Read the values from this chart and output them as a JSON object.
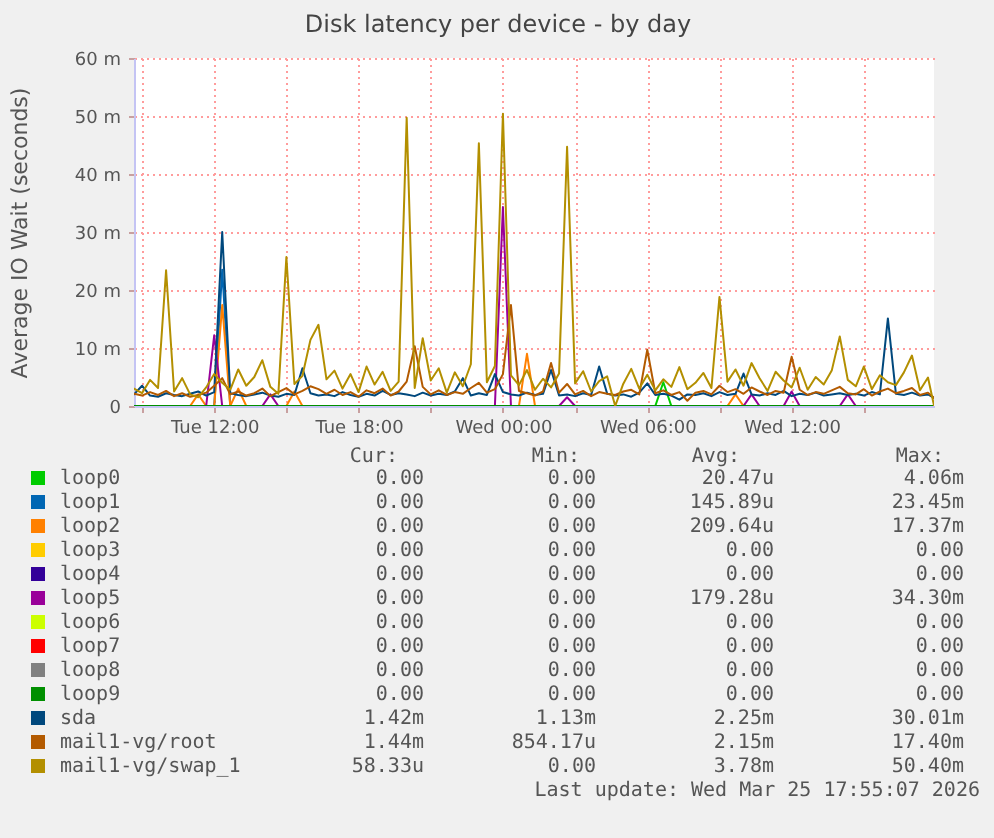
{
  "chart_data": {
    "type": "line",
    "title": "Disk latency per device - by day",
    "ylabel": "Average IO Wait (seconds)",
    "x": [
      "2026-03-24T08:40",
      "2026-03-24T09:00",
      "2026-03-24T09:20",
      "2026-03-24T09:40",
      "2026-03-24T10:00",
      "2026-03-24T10:20",
      "2026-03-24T10:40",
      "2026-03-24T11:00",
      "2026-03-24T11:20",
      "2026-03-24T11:40",
      "2026-03-24T12:00",
      "2026-03-24T12:20",
      "2026-03-24T12:40",
      "2026-03-24T13:00",
      "2026-03-24T13:20",
      "2026-03-24T13:40",
      "2026-03-24T14:00",
      "2026-03-24T14:20",
      "2026-03-24T14:40",
      "2026-03-24T15:00",
      "2026-03-24T15:20",
      "2026-03-24T15:40",
      "2026-03-24T16:00",
      "2026-03-24T16:20",
      "2026-03-24T16:40",
      "2026-03-24T17:00",
      "2026-03-24T17:20",
      "2026-03-24T17:40",
      "2026-03-24T18:00",
      "2026-03-24T18:20",
      "2026-03-24T18:40",
      "2026-03-24T19:00",
      "2026-03-24T19:20",
      "2026-03-24T19:40",
      "2026-03-24T20:00",
      "2026-03-24T20:20",
      "2026-03-24T20:40",
      "2026-03-24T21:00",
      "2026-03-24T21:20",
      "2026-03-24T21:40",
      "2026-03-24T22:00",
      "2026-03-24T22:20",
      "2026-03-24T22:40",
      "2026-03-24T23:00",
      "2026-03-24T23:20",
      "2026-03-24T23:40",
      "2026-03-25T00:00",
      "2026-03-25T00:20",
      "2026-03-25T00:40",
      "2026-03-25T01:00",
      "2026-03-25T01:20",
      "2026-03-25T01:40",
      "2026-03-25T02:00",
      "2026-03-25T02:20",
      "2026-03-25T02:40",
      "2026-03-25T03:00",
      "2026-03-25T03:20",
      "2026-03-25T03:40",
      "2026-03-25T04:00",
      "2026-03-25T04:20",
      "2026-03-25T04:40",
      "2026-03-25T05:00",
      "2026-03-25T05:20",
      "2026-03-25T05:40",
      "2026-03-25T06:00",
      "2026-03-25T06:20",
      "2026-03-25T06:40",
      "2026-03-25T07:00",
      "2026-03-25T07:20",
      "2026-03-25T07:40",
      "2026-03-25T08:00",
      "2026-03-25T08:20",
      "2026-03-25T08:40",
      "2026-03-25T09:00",
      "2026-03-25T09:20",
      "2026-03-25T09:40",
      "2026-03-25T10:00",
      "2026-03-25T10:20",
      "2026-03-25T10:40",
      "2026-03-25T11:00",
      "2026-03-25T11:20",
      "2026-03-25T11:40",
      "2026-03-25T12:00",
      "2026-03-25T12:20",
      "2026-03-25T12:40",
      "2026-03-25T13:00",
      "2026-03-25T13:20",
      "2026-03-25T13:40",
      "2026-03-25T14:00",
      "2026-03-25T14:20",
      "2026-03-25T14:40",
      "2026-03-25T15:00",
      "2026-03-25T15:20",
      "2026-03-25T15:40",
      "2026-03-25T16:00",
      "2026-03-25T16:20",
      "2026-03-25T16:40",
      "2026-03-25T17:00",
      "2026-03-25T17:20",
      "2026-03-25T17:40",
      "2026-03-25T17:55"
    ],
    "series": [
      {
        "name": "loop0",
        "color": "#00cc00",
        "x": [
          "2026-03-25T06:20",
          "2026-03-25T06:40",
          "2026-03-25T07:00"
        ],
        "values": [
          0,
          4.1,
          0
        ]
      },
      {
        "name": "loop1",
        "color": "#0066b3",
        "x": [
          "2026-03-24T12:00",
          "2026-03-24T12:20",
          "2026-03-24T12:40"
        ],
        "values": [
          0,
          23.5,
          0
        ]
      },
      {
        "name": "loop2",
        "color": "#ff8000",
        "x": [
          "2026-03-24T11:00",
          "2026-03-24T11:20",
          "2026-03-24T11:40",
          "2026-03-24T12:00",
          "2026-03-24T12:20",
          "2026-03-24T12:40",
          "2026-03-24T13:00",
          "2026-03-24T13:20",
          "2026-03-24T15:00",
          "2026-03-24T15:20",
          "2026-03-24T15:40",
          "2026-03-25T00:40",
          "2026-03-25T01:00",
          "2026-03-25T01:20",
          "2026-03-25T09:20",
          "2026-03-25T09:40",
          "2026-03-25T10:00"
        ],
        "values": [
          0,
          2,
          0,
          0,
          17.4,
          0,
          3,
          0,
          0,
          2.5,
          0,
          0,
          9,
          0,
          0,
          2,
          0
        ]
      },
      {
        "name": "loop3",
        "color": "#ffcc00",
        "values": [
          null,
          null,
          null,
          null,
          null,
          null,
          null,
          null,
          null,
          null,
          null,
          null,
          null,
          null,
          null,
          null,
          null,
          null,
          null,
          null,
          null,
          null,
          null,
          null,
          null,
          null,
          null,
          null,
          null,
          null,
          null,
          null,
          null,
          null,
          null,
          null,
          null,
          null,
          null,
          null,
          null,
          null,
          null,
          null,
          null,
          null,
          null,
          null,
          null,
          null,
          null,
          null,
          null,
          null,
          null,
          null,
          null,
          null,
          null,
          null,
          null,
          null,
          null,
          null,
          null,
          null,
          null,
          null,
          null,
          null,
          null,
          null,
          null,
          null,
          null,
          null,
          null,
          null,
          null,
          null,
          null,
          null,
          null,
          null,
          null,
          null,
          null,
          null,
          null,
          null,
          null,
          null,
          null,
          null,
          null,
          null,
          null,
          null,
          null,
          null,
          null
        ]
      },
      {
        "name": "loop4",
        "color": "#330099",
        "values": [
          null,
          null,
          null,
          null,
          null,
          null,
          null,
          null,
          null,
          null,
          null,
          null,
          null,
          null,
          null,
          null,
          null,
          null,
          null,
          null,
          null,
          null,
          null,
          null,
          null,
          null,
          null,
          null,
          null,
          null,
          null,
          null,
          null,
          null,
          null,
          null,
          null,
          null,
          null,
          null,
          null,
          null,
          null,
          null,
          null,
          null,
          null,
          null,
          null,
          null,
          null,
          null,
          null,
          null,
          null,
          null,
          null,
          null,
          null,
          null,
          null,
          null,
          null,
          null,
          null,
          null,
          null,
          null,
          null,
          null,
          null,
          null,
          null,
          null,
          null,
          null,
          null,
          null,
          null,
          null,
          null,
          null,
          null,
          null,
          null,
          null,
          null,
          null,
          null,
          null,
          null,
          null,
          null,
          null,
          null,
          null,
          null,
          null,
          null,
          null,
          null
        ]
      },
      {
        "name": "loop5",
        "color": "#990099",
        "x": [
          "2026-03-24T11:40",
          "2026-03-24T12:00",
          "2026-03-24T12:20",
          "2026-03-24T14:00",
          "2026-03-24T14:20",
          "2026-03-24T14:40",
          "2026-03-24T23:40",
          "2026-03-25T00:00",
          "2026-03-25T00:20",
          "2026-03-25T02:20",
          "2026-03-25T02:40",
          "2026-03-25T03:00",
          "2026-03-25T10:00",
          "2026-03-25T10:20",
          "2026-03-25T10:40",
          "2026-03-25T11:40",
          "2026-03-25T12:00",
          "2026-03-25T12:20",
          "2026-03-25T14:00",
          "2026-03-25T14:20",
          "2026-03-25T14:40"
        ],
        "values": [
          0,
          12.2,
          0,
          0,
          2,
          0,
          0,
          34.3,
          0,
          0,
          1.5,
          0,
          0,
          2,
          0,
          0,
          2.5,
          0,
          0,
          2,
          0
        ]
      },
      {
        "name": "loop6",
        "color": "#ccff00",
        "values": [
          null,
          null,
          null,
          null,
          null,
          null,
          null,
          null,
          null,
          null,
          null,
          null,
          null,
          null,
          null,
          null,
          null,
          null,
          null,
          null,
          null,
          null,
          null,
          null,
          null,
          null,
          null,
          null,
          null,
          null,
          null,
          null,
          null,
          null,
          null,
          null,
          null,
          null,
          null,
          null,
          null,
          null,
          null,
          null,
          null,
          null,
          null,
          null,
          null,
          null,
          null,
          null,
          null,
          null,
          null,
          null,
          null,
          null,
          null,
          null,
          null,
          null,
          null,
          null,
          null,
          null,
          null,
          null,
          null,
          null,
          null,
          null,
          null,
          null,
          null,
          null,
          null,
          null,
          null,
          null,
          null,
          null,
          null,
          null,
          null,
          null,
          null,
          null,
          null,
          null,
          null,
          null,
          null,
          null,
          null,
          null,
          null,
          null,
          null,
          null,
          null
        ]
      },
      {
        "name": "loop7",
        "color": "#ff0000",
        "values": [
          null,
          null,
          null,
          null,
          null,
          null,
          null,
          null,
          null,
          null,
          null,
          null,
          null,
          null,
          null,
          null,
          null,
          null,
          null,
          null,
          null,
          null,
          null,
          null,
          null,
          null,
          null,
          null,
          null,
          null,
          null,
          null,
          null,
          null,
          null,
          null,
          null,
          null,
          null,
          null,
          null,
          null,
          null,
          null,
          null,
          null,
          null,
          null,
          null,
          null,
          null,
          null,
          null,
          null,
          null,
          null,
          null,
          null,
          null,
          null,
          null,
          null,
          null,
          null,
          null,
          null,
          null,
          null,
          null,
          null,
          null,
          null,
          null,
          null,
          null,
          null,
          null,
          null,
          null,
          null,
          null,
          null,
          null,
          null,
          null,
          null,
          null,
          null,
          null,
          null,
          null,
          null,
          null,
          null,
          null,
          null,
          null,
          null,
          null,
          null,
          null
        ]
      },
      {
        "name": "loop8",
        "color": "#808080",
        "values": [
          null,
          null,
          null,
          null,
          null,
          null,
          null,
          null,
          null,
          null,
          null,
          null,
          null,
          null,
          null,
          null,
          null,
          null,
          null,
          null,
          null,
          null,
          null,
          null,
          null,
          null,
          null,
          null,
          null,
          null,
          null,
          null,
          null,
          null,
          null,
          null,
          null,
          null,
          null,
          null,
          null,
          null,
          null,
          null,
          null,
          null,
          null,
          null,
          null,
          null,
          null,
          null,
          null,
          null,
          null,
          null,
          null,
          null,
          null,
          null,
          null,
          null,
          null,
          null,
          null,
          null,
          null,
          null,
          null,
          null,
          null,
          null,
          null,
          null,
          null,
          null,
          null,
          null,
          null,
          null,
          null,
          null,
          null,
          null,
          null,
          null,
          null,
          null,
          null,
          null,
          null,
          null,
          null,
          null,
          null,
          null,
          null,
          null,
          null,
          null,
          null
        ]
      },
      {
        "name": "loop9",
        "color": "#008f00",
        "x": [
          "2026-03-24T08:40",
          "2026-03-25T17:55"
        ],
        "values": [
          0,
          0
        ]
      },
      {
        "name": "sda",
        "color": "#00487d",
        "values": [
          2.0,
          3.5,
          1.8,
          1.6,
          2.2,
          1.9,
          1.7,
          2.1,
          2.5,
          1.8,
          2.4,
          30.0,
          2.2,
          1.9,
          1.7,
          2.0,
          2.3,
          1.8,
          1.6,
          2.1,
          1.9,
          6.5,
          2.2,
          1.8,
          2.0,
          1.7,
          2.4,
          1.9,
          1.6,
          2.1,
          1.8,
          2.6,
          1.9,
          2.2,
          2.0,
          1.7,
          2.3,
          1.8,
          2.1,
          1.9,
          2.5,
          4.8,
          1.8,
          2.2,
          1.9,
          5.5,
          2.4,
          2.0,
          1.8,
          2.3,
          1.9,
          2.1,
          6.2,
          1.8,
          2.0,
          1.7,
          2.2,
          1.9,
          6.8,
          2.1,
          1.8,
          2.0,
          1.6,
          2.3,
          3.9,
          1.9,
          2.1,
          1.8,
          1.1,
          2.0,
          1.9,
          2.2,
          1.7,
          2.4,
          1.9,
          2.1,
          5.6,
          2.0,
          1.8,
          2.2,
          1.9,
          2.6,
          1.7,
          2.1,
          1.9,
          2.3,
          1.8,
          2.0,
          2.2,
          1.9,
          2.1,
          1.8,
          2.4,
          2.0,
          15.1,
          2.1,
          1.9,
          2.3,
          1.8,
          2.0,
          1.4
        ]
      },
      {
        "name": "mail1-vg/root",
        "color": "#b35a00",
        "values": [
          2.1,
          1.8,
          2.4,
          1.9,
          2.6,
          1.7,
          2.2,
          1.6,
          1.9,
          2.3,
          3.5,
          4.8,
          2.0,
          2.5,
          1.8,
          2.2,
          3.0,
          1.7,
          2.4,
          3.1,
          2.0,
          2.6,
          3.4,
          2.9,
          2.1,
          2.8,
          1.9,
          2.4,
          1.6,
          2.7,
          2.2,
          3.0,
          1.8,
          2.5,
          4.2,
          10.3,
          3.3,
          2.0,
          2.7,
          1.9,
          2.4,
          2.1,
          3.1,
          4.0,
          2.3,
          2.9,
          5.5,
          17.4,
          2.6,
          2.2,
          1.8,
          2.5,
          7.4,
          2.3,
          3.8,
          2.0,
          2.6,
          1.7,
          2.4,
          2.1,
          1.9,
          2.5,
          2.8,
          2.0,
          9.7,
          2.2,
          2.7,
          1.9,
          2.4,
          0.9,
          2.3,
          2.6,
          2.0,
          3.5,
          2.4,
          2.9,
          2.1,
          3.2,
          2.5,
          1.9,
          2.6,
          2.3,
          8.5,
          2.8,
          1.9,
          2.4,
          2.1,
          2.7,
          3.3,
          2.2,
          2.0,
          2.9,
          1.8,
          2.5,
          3.0,
          2.2,
          2.6,
          3.1,
          1.9,
          2.3,
          1.4
        ]
      },
      {
        "name": "mail1-vg/swap_1",
        "color": "#b38f00",
        "values": [
          3.0,
          2.2,
          4.5,
          3.1,
          23.4,
          2.5,
          4.8,
          2.0,
          1.5,
          3.2,
          5.5,
          4.0,
          2.8,
          6.3,
          3.5,
          5.0,
          7.9,
          3.3,
          2.1,
          25.7,
          3.8,
          5.2,
          11.4,
          14.0,
          4.6,
          6.1,
          3.0,
          5.5,
          2.4,
          6.8,
          3.7,
          5.9,
          2.6,
          4.2,
          49.7,
          3.1,
          11.7,
          4.4,
          6.5,
          2.3,
          5.8,
          3.4,
          7.2,
          45.3,
          4.1,
          6.9,
          50.4,
          5.3,
          3.6,
          6.2,
          2.8,
          4.7,
          3.2,
          5.6,
          44.7,
          3.9,
          6.0,
          2.5,
          4.3,
          5.1,
          0,
          3.8,
          6.4,
          3.0,
          5.4,
          2.7,
          4.6,
          3.3,
          6.7,
          2.9,
          4.0,
          5.7,
          3.1,
          18.8,
          4.2,
          6.3,
          3.5,
          7.4,
          4.8,
          2.6,
          5.9,
          4.4,
          3.2,
          6.6,
          2.8,
          5.0,
          3.7,
          6.1,
          12.0,
          4.5,
          3.4,
          6.8,
          2.9,
          5.3,
          4.1,
          3.6,
          5.8,
          8.7,
          2.7,
          4.9,
          0.1
        ]
      }
    ],
    "xlim": [
      "2026-03-24T08:40",
      "2026-03-25T17:55"
    ],
    "xticks": [
      {
        "value": "2026-03-24T09:00",
        "label": null
      },
      {
        "value": "2026-03-24T12:00",
        "label": "Tue 12:00"
      },
      {
        "value": "2026-03-24T15:00",
        "label": null
      },
      {
        "value": "2026-03-24T18:00",
        "label": "Tue 18:00"
      },
      {
        "value": "2026-03-24T21:00",
        "label": null
      },
      {
        "value": "2026-03-25T00:00",
        "label": "Wed 00:00"
      },
      {
        "value": "2026-03-25T03:00",
        "label": null
      },
      {
        "value": "2026-03-25T06:00",
        "label": "Wed 06:00"
      },
      {
        "value": "2026-03-25T09:00",
        "label": null
      },
      {
        "value": "2026-03-25T12:00",
        "label": "Wed 12:00"
      },
      {
        "value": "2026-03-25T15:00",
        "label": null
      }
    ],
    "ylim": [
      0,
      60
    ],
    "yticks": [
      0,
      {
        "value": 10,
        "label": "10 m"
      },
      {
        "value": 20,
        "label": "20 m"
      },
      {
        "value": 30,
        "label": "30 m"
      },
      {
        "value": 40,
        "label": "40 m"
      },
      {
        "value": 50,
        "label": "50 m"
      },
      {
        "value": 60,
        "label": "60 m"
      }
    ],
    "grid": true,
    "legend": "bottom",
    "line_style": "solid",
    "annotations": [
      "Cur:",
      "Min:",
      "Avg:",
      "Max:",
      "0.00",
      "0.00",
      "20.47u",
      "4.06m",
      "0.00",
      "0.00",
      "145.89u",
      "23.45m",
      "0.00",
      "0.00",
      "209.64u",
      "17.37m",
      "0.00",
      "0.00",
      "0.00",
      "0.00",
      "0.00",
      "0.00",
      "0.00",
      "0.00",
      "0.00",
      "0.00",
      "179.28u",
      "34.30m",
      "0.00",
      "0.00",
      "0.00",
      "0.00",
      "0.00",
      "0.00",
      "0.00",
      "0.00",
      "0.00",
      "0.00",
      "0.00",
      "0.00",
      "0.00",
      "0.00",
      "0.00",
      "0.00",
      "1.42m",
      "1.13m",
      "2.25m",
      "30.01m",
      "1.44m",
      "854.17u",
      "2.15m",
      "17.40m",
      "58.33u",
      "0.00",
      "3.78m",
      "50.40m",
      "Last update: Wed Mar 25 17:55:07 2026"
    ]
  }
}
